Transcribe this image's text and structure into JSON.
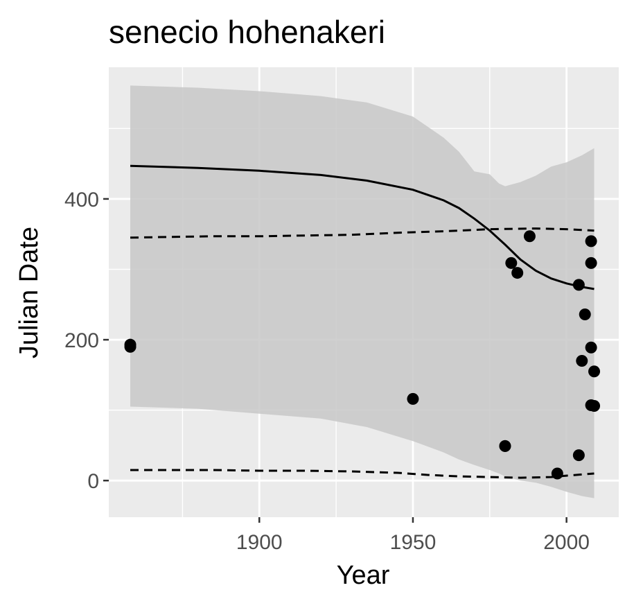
{
  "chart_data": {
    "type": "scatter",
    "title": "senecio hohenakeri",
    "xlabel": "Year",
    "ylabel": "Julian Date",
    "xlim": [
      1851,
      2017
    ],
    "ylim": [
      -52,
      587
    ],
    "x_ticks": [
      1900,
      1950,
      2000
    ],
    "y_ticks": [
      0,
      200,
      400
    ],
    "x_minor": [
      1875,
      1925,
      1975
    ],
    "y_minor": [
      100,
      300,
      500
    ],
    "grid": true,
    "legend": "none",
    "colors": {
      "panel": "#ebebeb",
      "grid": "#ffffff",
      "ribbon": "#c8c8c8",
      "line": "#000000",
      "points": "#000000",
      "tick_label": "#4d4d4d"
    },
    "points": [
      {
        "x": 1858,
        "y": 190
      },
      {
        "x": 1858,
        "y": 193
      },
      {
        "x": 1950,
        "y": 116
      },
      {
        "x": 1980,
        "y": 49
      },
      {
        "x": 1980,
        "y": 49
      },
      {
        "x": 1982,
        "y": 309
      },
      {
        "x": 1984,
        "y": 295
      },
      {
        "x": 1988,
        "y": 347
      },
      {
        "x": 1997,
        "y": 10
      },
      {
        "x": 2004,
        "y": 278
      },
      {
        "x": 2004,
        "y": 36
      },
      {
        "x": 2005,
        "y": 170
      },
      {
        "x": 2006,
        "y": 236
      },
      {
        "x": 2008,
        "y": 340
      },
      {
        "x": 2008,
        "y": 309
      },
      {
        "x": 2008,
        "y": 189
      },
      {
        "x": 2008,
        "y": 107
      },
      {
        "x": 2009,
        "y": 155
      },
      {
        "x": 2009,
        "y": 106
      }
    ],
    "fit_line": {
      "x": [
        1858,
        1880,
        1900,
        1920,
        1935,
        1950,
        1960,
        1965,
        1970,
        1975,
        1980,
        1985,
        1990,
        1995,
        2000,
        2005,
        2009
      ],
      "y": [
        447,
        444,
        440,
        434,
        426,
        413,
        398,
        387,
        372,
        355,
        335,
        314,
        298,
        287,
        280,
        275,
        272
      ]
    },
    "ribbon": {
      "x": [
        1858,
        1880,
        1900,
        1920,
        1935,
        1950,
        1960,
        1965,
        1970,
        1975,
        1978,
        1980,
        1985,
        1990,
        1995,
        2000,
        2005,
        2009
      ],
      "upper": [
        561,
        558,
        553,
        546,
        537,
        517,
        487,
        467,
        439,
        435,
        422,
        418,
        424,
        433,
        446,
        452,
        462,
        472
      ],
      "lower": [
        105,
        102,
        95,
        88,
        76,
        56,
        40,
        30,
        22,
        15,
        10,
        6,
        0,
        -3,
        -9,
        -16,
        -22,
        -25
      ]
    },
    "dashed_upper": {
      "x": [
        1858,
        1870,
        1885,
        1900,
        1915,
        1930,
        1945,
        1960,
        1975,
        1990,
        2000,
        2009
      ],
      "y": [
        345,
        346,
        347,
        347,
        348,
        349,
        352,
        354,
        357,
        358,
        357,
        355
      ]
    },
    "dashed_lower": {
      "x": [
        1858,
        1870,
        1885,
        1900,
        1915,
        1930,
        1945,
        1955,
        1965,
        1975,
        1985,
        1995,
        2000,
        2009
      ],
      "y": [
        15,
        15,
        15,
        14,
        14,
        13,
        11,
        8,
        6,
        5,
        4,
        5,
        7,
        10
      ]
    }
  }
}
